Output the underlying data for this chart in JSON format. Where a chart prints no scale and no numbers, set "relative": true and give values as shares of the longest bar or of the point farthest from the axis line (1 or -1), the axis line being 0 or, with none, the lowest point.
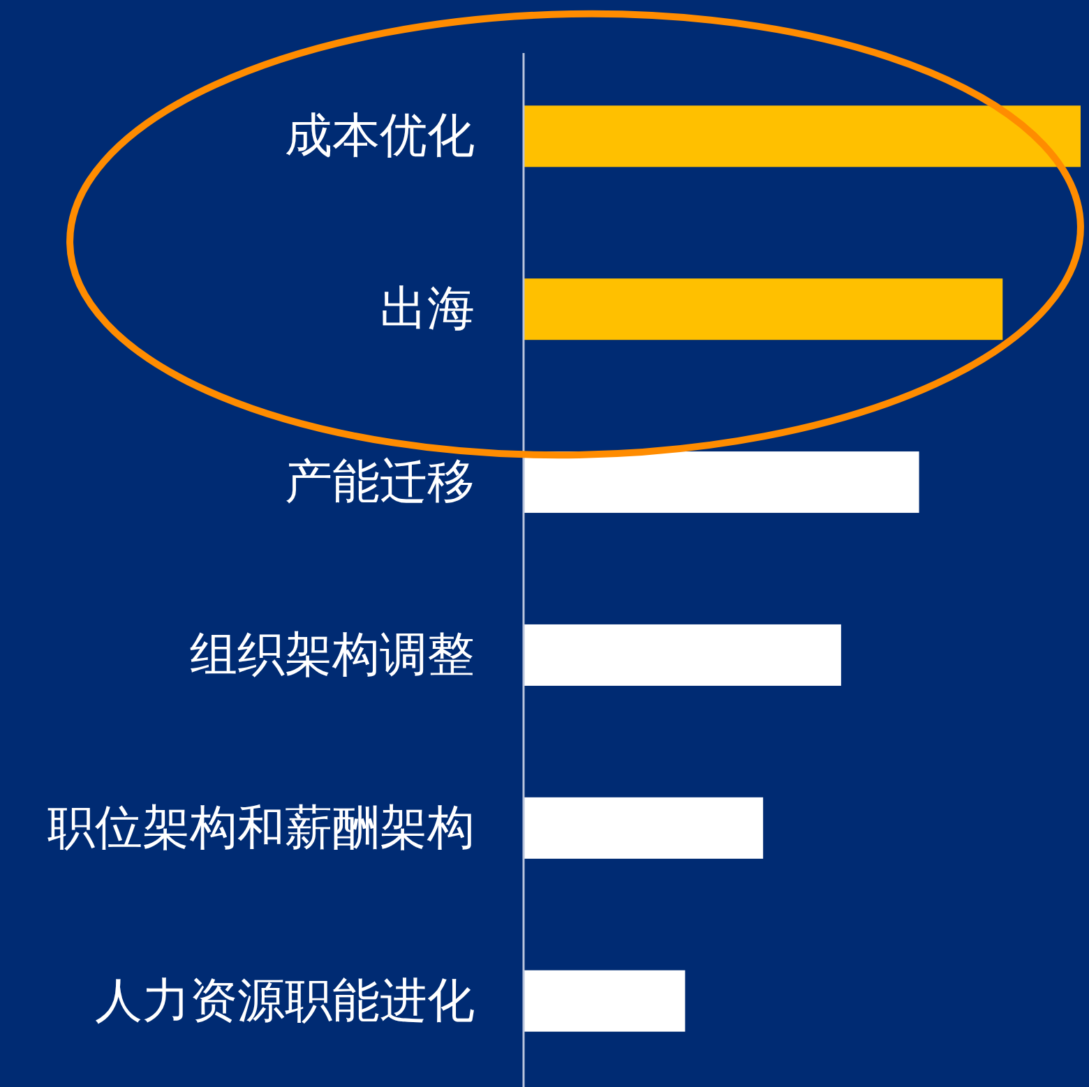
{
  "chart_data": {
    "type": "bar",
    "orientation": "horizontal",
    "relative": true,
    "categories": [
      "成本优化",
      "出海",
      "产能迁移",
      "组织架构调整",
      "职位架构和薪酬架构",
      "人力资源职能进化"
    ],
    "values": [
      1,
      0.86,
      0.71,
      0.57,
      0.43,
      0.29
    ],
    "colors": [
      "#ffc000",
      "#ffc000",
      "#ffffff",
      "#ffffff",
      "#ffffff",
      "#ffffff"
    ]
  }
}
